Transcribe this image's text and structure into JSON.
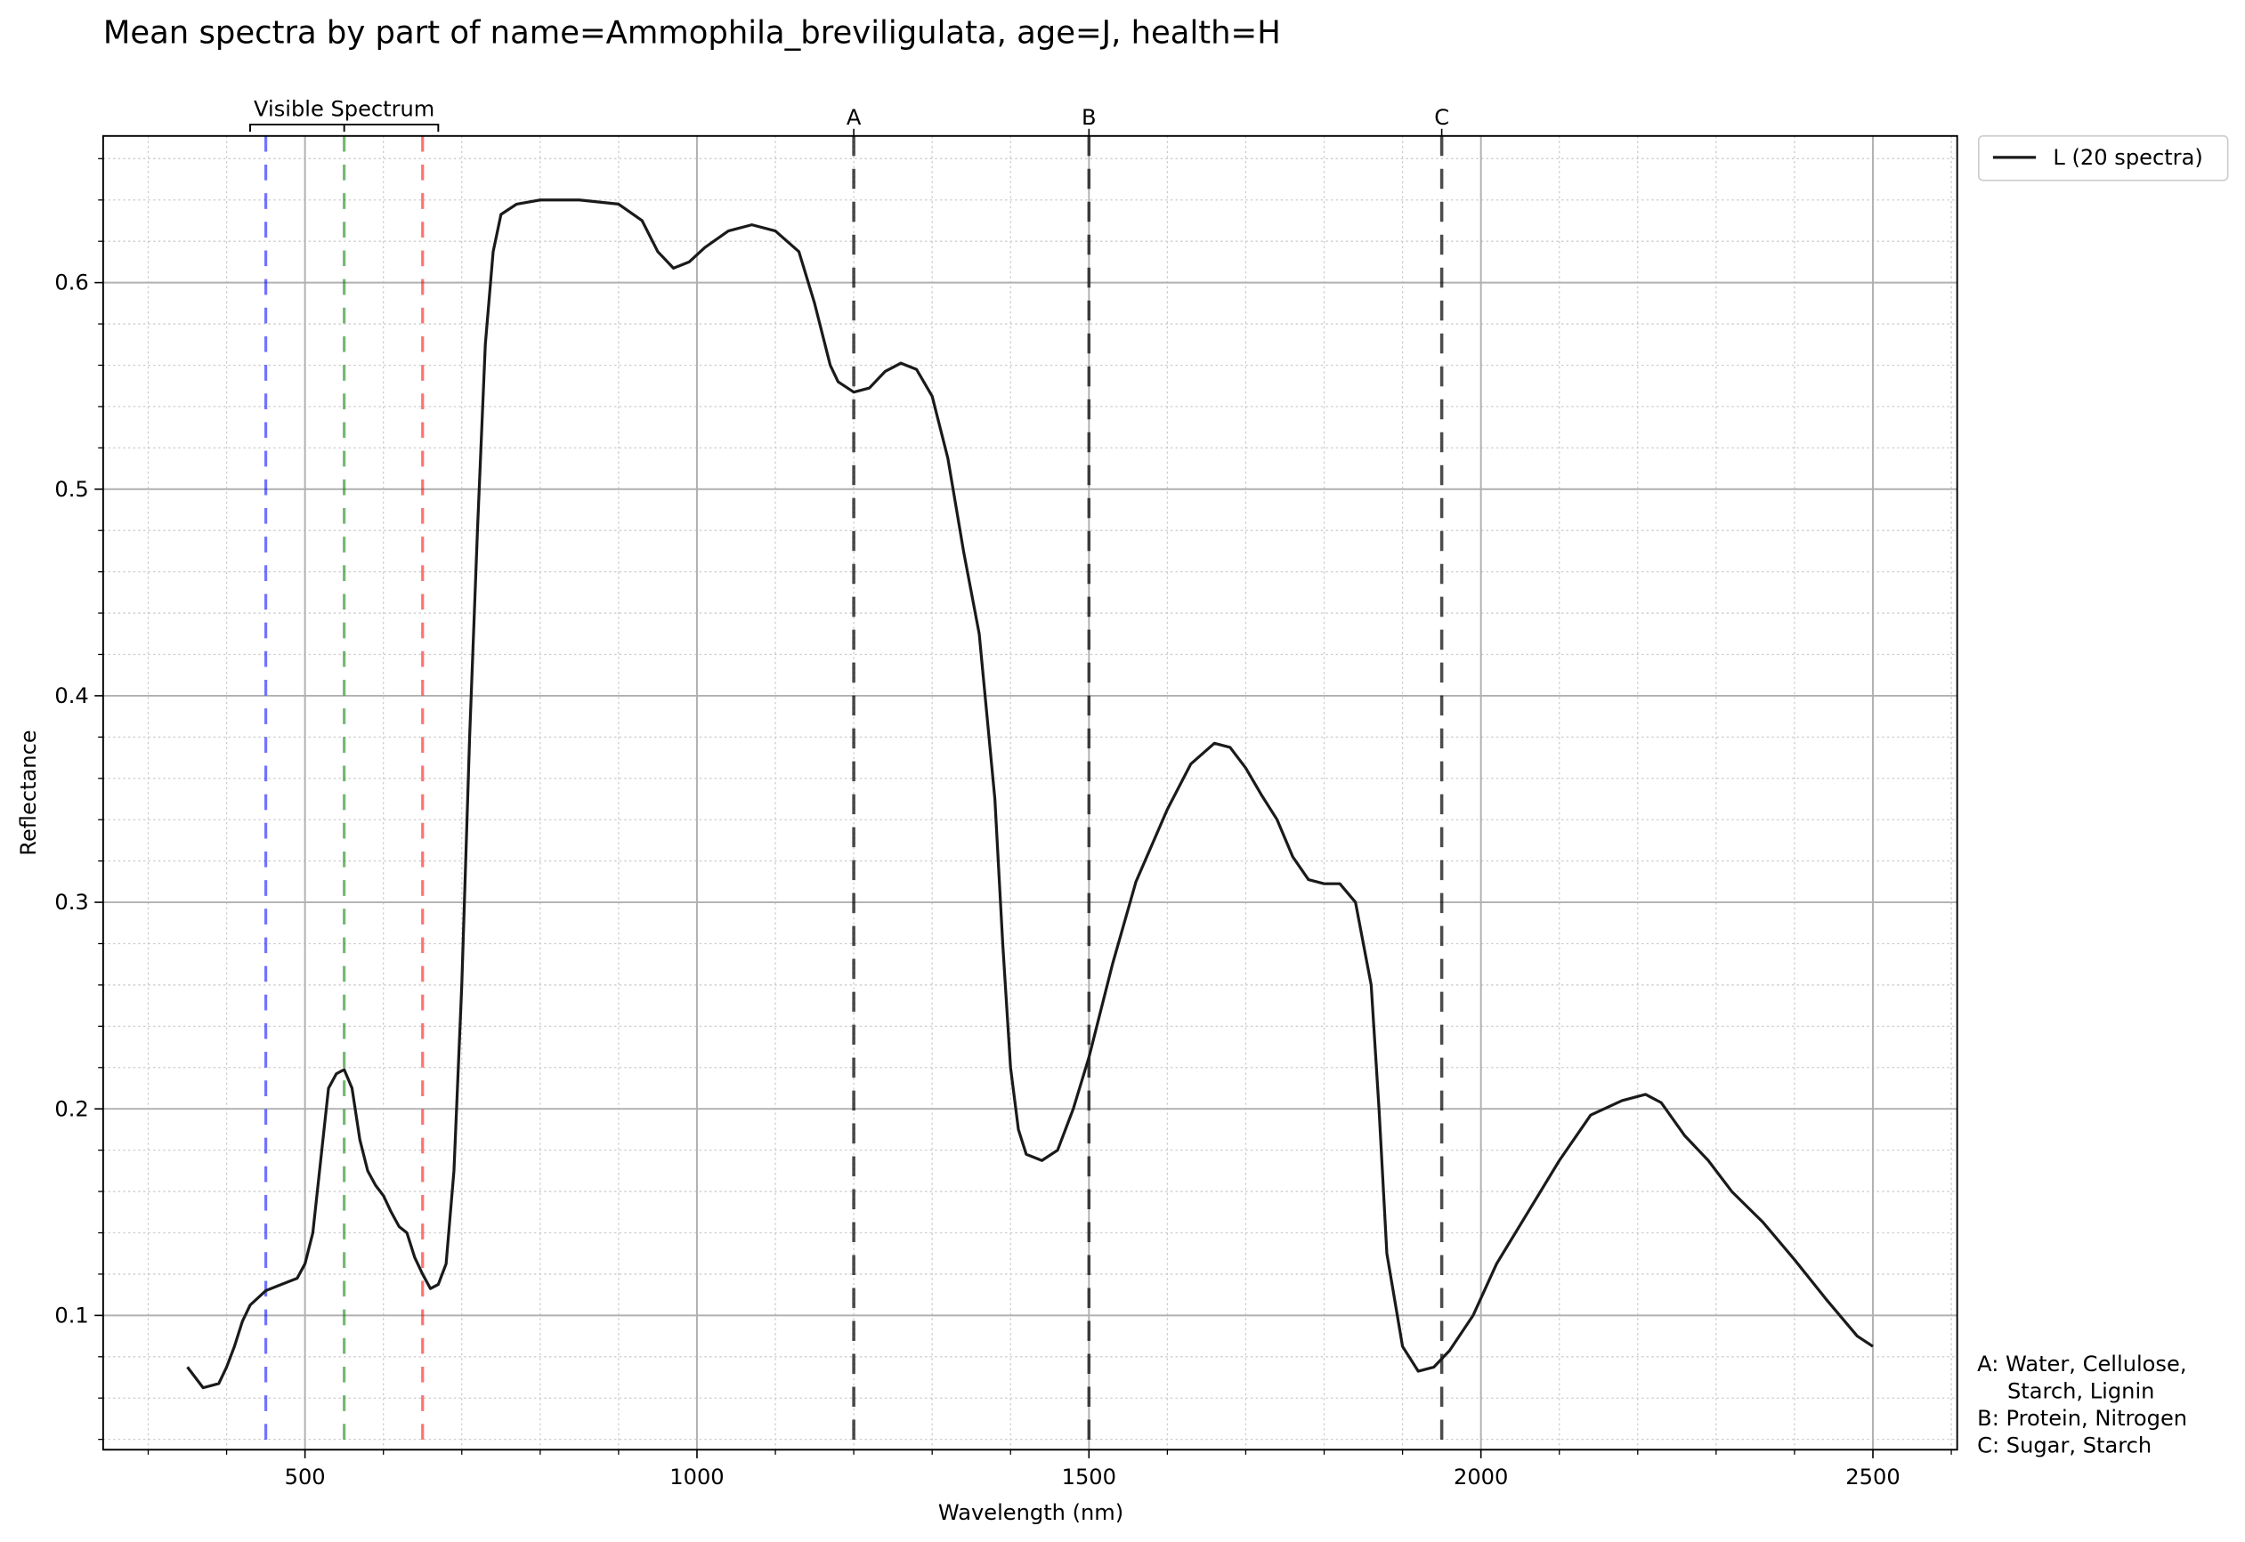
{
  "chart_data": {
    "type": "line",
    "title": "Mean spectra by part of name=Ammophila_breviligulata, age=J, health=H",
    "xlabel": "Wavelength (nm)",
    "ylabel": "Reflectance",
    "x": [
      350,
      360,
      370,
      380,
      390,
      400,
      410,
      420,
      430,
      450,
      470,
      490,
      500,
      510,
      520,
      530,
      540,
      550,
      560,
      570,
      580,
      590,
      600,
      610,
      620,
      630,
      640,
      650,
      660,
      670,
      680,
      690,
      700,
      710,
      720,
      730,
      740,
      750,
      770,
      800,
      850,
      900,
      930,
      950,
      970,
      990,
      1010,
      1040,
      1070,
      1100,
      1130,
      1150,
      1170,
      1180,
      1200,
      1220,
      1240,
      1260,
      1280,
      1300,
      1320,
      1340,
      1360,
      1380,
      1390,
      1400,
      1410,
      1420,
      1440,
      1460,
      1480,
      1500,
      1530,
      1560,
      1600,
      1630,
      1660,
      1680,
      1700,
      1720,
      1740,
      1760,
      1780,
      1800,
      1820,
      1840,
      1860,
      1870,
      1880,
      1900,
      1920,
      1940,
      1960,
      1990,
      2020,
      2060,
      2100,
      2140,
      2180,
      2210,
      2230,
      2260,
      2290,
      2320,
      2360,
      2400,
      2440,
      2480,
      2500
    ],
    "series": [
      {
        "name": "L (20 spectra)",
        "color": "#1a1a1a",
        "values": [
          0.075,
          0.07,
          0.065,
          0.066,
          0.067,
          0.075,
          0.085,
          0.097,
          0.105,
          0.112,
          0.115,
          0.118,
          0.125,
          0.14,
          0.175,
          0.21,
          0.217,
          0.219,
          0.21,
          0.185,
          0.17,
          0.163,
          0.158,
          0.15,
          0.143,
          0.14,
          0.128,
          0.12,
          0.113,
          0.115,
          0.125,
          0.17,
          0.26,
          0.38,
          0.48,
          0.57,
          0.615,
          0.633,
          0.638,
          0.64,
          0.64,
          0.638,
          0.63,
          0.615,
          0.607,
          0.61,
          0.617,
          0.625,
          0.628,
          0.625,
          0.615,
          0.59,
          0.56,
          0.552,
          0.547,
          0.549,
          0.557,
          0.561,
          0.558,
          0.545,
          0.515,
          0.47,
          0.43,
          0.35,
          0.28,
          0.22,
          0.19,
          0.178,
          0.175,
          0.18,
          0.2,
          0.225,
          0.27,
          0.31,
          0.345,
          0.367,
          0.377,
          0.375,
          0.365,
          0.352,
          0.34,
          0.322,
          0.311,
          0.309,
          0.309,
          0.3,
          0.26,
          0.2,
          0.13,
          0.085,
          0.073,
          0.075,
          0.083,
          0.1,
          0.125,
          0.15,
          0.175,
          0.197,
          0.204,
          0.207,
          0.203,
          0.187,
          0.175,
          0.16,
          0.145,
          0.127,
          0.108,
          0.09,
          0.085
        ]
      }
    ],
    "xlim": [
      242.5,
      2607.5
    ],
    "ylim": [
      0.035,
      0.671
    ],
    "xticks": [
      500,
      1000,
      1500,
      2000,
      2500
    ],
    "yticks": [
      0.1,
      0.2,
      0.3,
      0.4,
      0.5,
      0.6
    ],
    "xminorticks": [
      300,
      400,
      600,
      700,
      800,
      900,
      1100,
      1200,
      1300,
      1400,
      1600,
      1700,
      1800,
      1900,
      2100,
      2200,
      2300,
      2400,
      2600
    ],
    "yminorticks": [
      0.04,
      0.06,
      0.08,
      0.12,
      0.14,
      0.16,
      0.18,
      0.22,
      0.24,
      0.26,
      0.28,
      0.32,
      0.34,
      0.36,
      0.38,
      0.42,
      0.44,
      0.46,
      0.48,
      0.52,
      0.54,
      0.56,
      0.58,
      0.62,
      0.64,
      0.66
    ],
    "grid": true,
    "minor_grid": true,
    "bands": [
      {
        "value": 450,
        "color": "#0000ff"
      },
      {
        "value": 550,
        "color": "#008000"
      },
      {
        "value": 650,
        "color": "#ff0000"
      }
    ],
    "visible_span": {
      "label": "Visible Spectrum",
      "start": 430,
      "center": 550,
      "end": 670
    },
    "markers": [
      {
        "label": "A",
        "value": 1200
      },
      {
        "label": "B",
        "value": 1500
      },
      {
        "label": "C",
        "value": 1950
      }
    ],
    "notes": [
      [
        "A: Water, Cellulose,",
        "Starch, Lignin"
      ],
      [
        "B: Protein, Nitrogen"
      ],
      [
        "C: Sugar, Starch"
      ]
    ],
    "legend": "outside upper right"
  }
}
